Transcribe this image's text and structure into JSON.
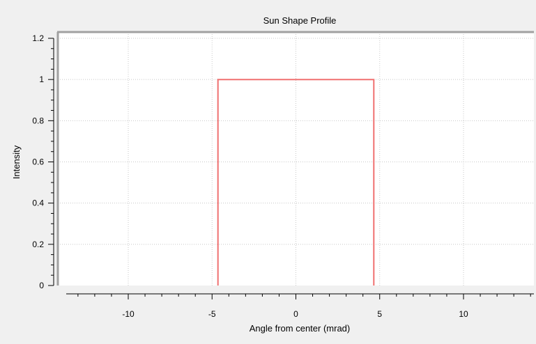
{
  "chart_data": {
    "type": "line",
    "title": "Sun Shape Profile",
    "xlabel": "Angle from center (mrad)",
    "ylabel": "Intensity",
    "xlim": [
      -14.2,
      14.2
    ],
    "ylim": [
      0,
      1.2
    ],
    "xticks": [
      -10,
      -5,
      0,
      5,
      10
    ],
    "xtick_labels": [
      "-10",
      "-5",
      "0",
      "5",
      "10"
    ],
    "yticks": [
      0,
      0.2,
      0.4,
      0.6,
      0.8,
      1,
      1.2
    ],
    "ytick_labels": [
      "0",
      "0.2",
      "0.4",
      "0.6",
      "0.8",
      "1",
      "1.2"
    ],
    "grid": true,
    "legend": "none",
    "series": [
      {
        "color": "#f07070",
        "x": [
          -4.65,
          -4.65,
          4.65,
          4.65
        ],
        "y": [
          0,
          1,
          1,
          0
        ]
      }
    ]
  }
}
